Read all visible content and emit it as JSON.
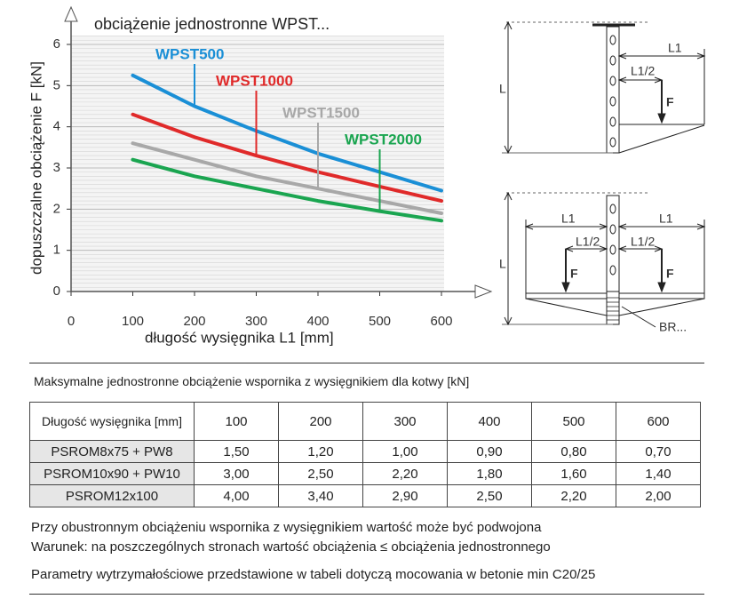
{
  "chart_data": {
    "type": "line",
    "title": "obciążenie jednostronne WPST...",
    "x_label": "długość wysięgnika L1 [mm]",
    "y_label": "dopuszczalne obciążenie F [kN]",
    "x": [
      100,
      200,
      300,
      400,
      500,
      600
    ],
    "series": [
      {
        "name": "WPST500",
        "color": "#1a8fd6",
        "values": [
          5.25,
          4.5,
          3.9,
          3.35,
          2.9,
          2.45
        ]
      },
      {
        "name": "WPST1000",
        "color": "#e02a2a",
        "values": [
          4.3,
          3.75,
          3.3,
          2.9,
          2.55,
          2.2
        ]
      },
      {
        "name": "WPST1500",
        "color": "#a8a8a8",
        "values": [
          3.6,
          3.2,
          2.8,
          2.5,
          2.2,
          1.9
        ]
      },
      {
        "name": "WPST2000",
        "color": "#1aa550",
        "values": [
          3.2,
          2.8,
          2.5,
          2.2,
          1.95,
          1.72
        ]
      }
    ],
    "xlim": [
      0,
      600
    ],
    "xticks": [
      0,
      100,
      200,
      300,
      400,
      500,
      600
    ],
    "ylim": [
      0,
      6
    ],
    "yticks": [
      0,
      1,
      2,
      3,
      4,
      5,
      6
    ],
    "grid": true
  },
  "diagram_top": {
    "labels": [
      "L1",
      "L1/2",
      "F",
      "L"
    ]
  },
  "diagram_bottom": {
    "labels": [
      "L1",
      "L1",
      "L1/2",
      "L1/2",
      "F",
      "F",
      "L",
      "BR..."
    ]
  },
  "table": {
    "title": "Maksymalne jednostronne obciążenie wspornika z wysięgnikiem dla kotwy [kN]",
    "header": [
      "Długość wysięgnika [mm]",
      "100",
      "200",
      "300",
      "400",
      "500",
      "600"
    ],
    "rows": [
      [
        "PSROM8x75 + PW8",
        "1,50",
        "1,20",
        "1,00",
        "0,90",
        "0,80",
        "0,70"
      ],
      [
        "PSROM10x90 + PW10",
        "3,00",
        "2,50",
        "2,20",
        "1,80",
        "1,60",
        "1,40"
      ],
      [
        "PSROM12x100",
        "4,00",
        "3,40",
        "2,90",
        "2,50",
        "2,20",
        "2,00"
      ]
    ]
  },
  "notes": [
    "Przy obustronnym obciążeniu wspornika z wysięgnikiem wartość może być podwojona",
    "Warunek: na poszczególnych stronach wartość obciążenia ≤ obciążenia jednostronnego",
    "Parametry wytrzymałościowe przedstawione w tabeli dotyczą mocowania w betonie min C20/25"
  ]
}
